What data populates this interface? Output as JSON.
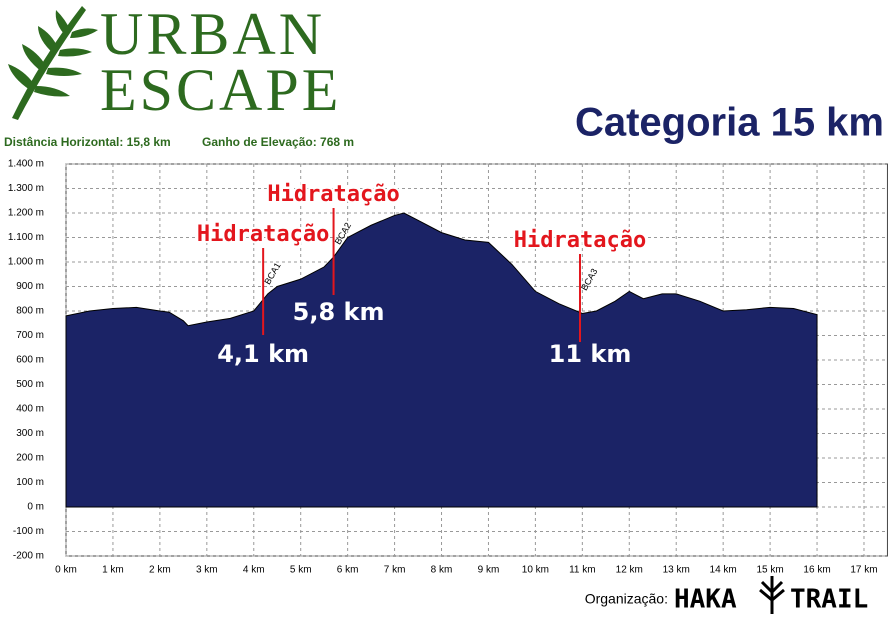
{
  "header": {
    "brand_line1": "URBAN",
    "brand_line2": "ESCAPE",
    "distance": "Distância Horizontal: 15,8 km",
    "gain": "Ganho de Elevação: 768 m",
    "category": "Categoria 15 km"
  },
  "footer": {
    "organizer_label": "Organização:",
    "org_name1": "HAKA",
    "org_name2": "TRAIL"
  },
  "chart_data": {
    "type": "area",
    "color": "#1b2366",
    "grid": true,
    "x": [
      0,
      0.5,
      1,
      1.5,
      2,
      2.2,
      2.5,
      2.6,
      3,
      3.5,
      4,
      4.3,
      4.5,
      5,
      5.5,
      5.7,
      6,
      6.2,
      6.5,
      7,
      7.2,
      7.5,
      8,
      8.5,
      9,
      9.5,
      10,
      10.5,
      11,
      11.3,
      11.7,
      12,
      12.3,
      12.7,
      13,
      13.5,
      14,
      14.5,
      15,
      15.5,
      16
    ],
    "values": [
      780,
      800,
      810,
      815,
      800,
      795,
      760,
      740,
      755,
      770,
      800,
      870,
      900,
      930,
      980,
      1020,
      1100,
      1120,
      1150,
      1190,
      1200,
      1170,
      1120,
      1090,
      1080,
      990,
      880,
      830,
      790,
      800,
      840,
      880,
      850,
      870,
      870,
      840,
      800,
      805,
      815,
      810,
      785
    ],
    "xlim": [
      0,
      17.5
    ],
    "ylim": [
      -200,
      1400
    ],
    "xticks": [
      {
        "value": 0,
        "label": "0 km"
      },
      {
        "value": 1,
        "label": "1 km"
      },
      {
        "value": 2,
        "label": "2 km"
      },
      {
        "value": 3,
        "label": "3 km"
      },
      {
        "value": 4,
        "label": "4 km"
      },
      {
        "value": 5,
        "label": "5 km"
      },
      {
        "value": 6,
        "label": "6 km"
      },
      {
        "value": 7,
        "label": "7 km"
      },
      {
        "value": 8,
        "label": "8 km"
      },
      {
        "value": 9,
        "label": "9 km"
      },
      {
        "value": 10,
        "label": "10 km"
      },
      {
        "value": 11,
        "label": "11 km"
      },
      {
        "value": 12,
        "label": "12 km"
      },
      {
        "value": 13,
        "label": "13 km"
      },
      {
        "value": 14,
        "label": "14 km"
      },
      {
        "value": 15,
        "label": "15 km"
      },
      {
        "value": 16,
        "label": "16 km"
      },
      {
        "value": 17,
        "label": "17 km"
      }
    ],
    "yticks": [
      {
        "value": -200,
        "label": "-200 m"
      },
      {
        "value": -100,
        "label": "-100 m"
      },
      {
        "value": 0,
        "label": "0 m"
      },
      {
        "value": 100,
        "label": "100 m"
      },
      {
        "value": 200,
        "label": "200 m"
      },
      {
        "value": 300,
        "label": "300 m"
      },
      {
        "value": 400,
        "label": "400 m"
      },
      {
        "value": 500,
        "label": "500 m"
      },
      {
        "value": 600,
        "label": "600 m"
      },
      {
        "value": 700,
        "label": "700 m"
      },
      {
        "value": 800,
        "label": "800 m"
      },
      {
        "value": 900,
        "label": "900 m"
      },
      {
        "value": 1000,
        "label": "1.000 m"
      },
      {
        "value": 1100,
        "label": "1.100 m"
      },
      {
        "value": 1200,
        "label": "1.200 m"
      },
      {
        "value": 1300,
        "label": "1.300 m"
      },
      {
        "value": 1400,
        "label": "1.400 m"
      }
    ],
    "annotations": [
      {
        "x": 4.2,
        "label": "Hidratação",
        "distance": "4,1 km",
        "marker": "BCA1"
      },
      {
        "x": 5.7,
        "label": "Hidratação",
        "distance": "5,8 km",
        "marker": "BCA2"
      },
      {
        "x": 10.95,
        "label": "Hidratação",
        "distance": "11 km",
        "marker": "BCA3"
      }
    ]
  }
}
